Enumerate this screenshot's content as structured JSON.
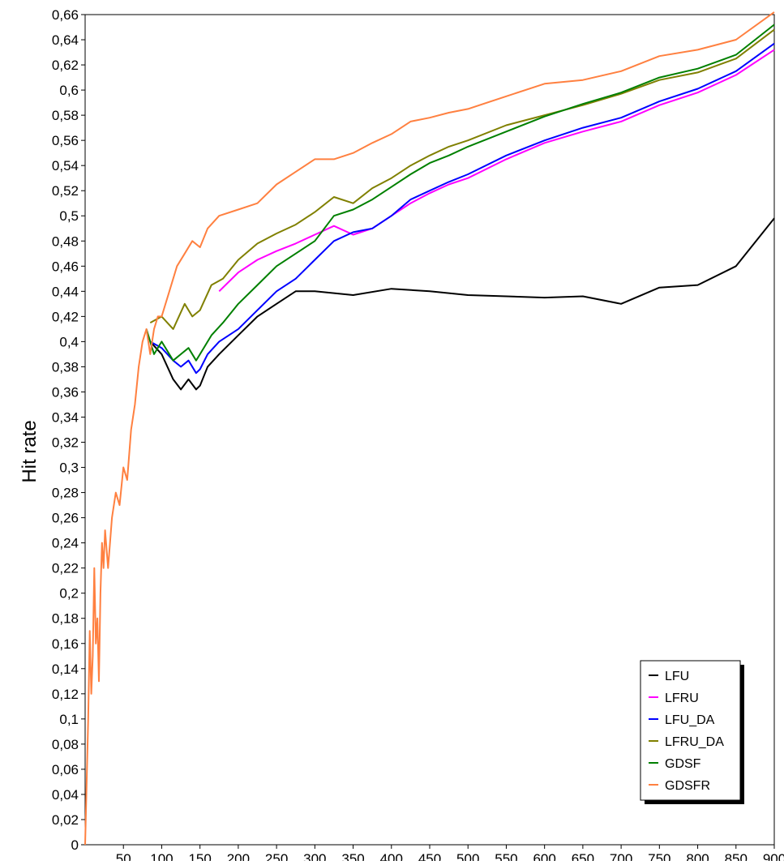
{
  "chart_data": {
    "type": "line",
    "title": "",
    "xlabel": "",
    "ylabel": "Hit rate",
    "xlim": [
      0,
      900
    ],
    "ylim": [
      0,
      0.66
    ],
    "y_ticks": [
      0,
      0.02,
      0.04,
      0.06,
      0.08,
      0.1,
      0.12,
      0.14,
      0.16,
      0.18,
      0.2,
      0.22,
      0.24,
      0.26,
      0.28,
      0.3,
      0.32,
      0.34,
      0.36,
      0.38,
      0.4,
      0.42,
      0.44,
      0.46,
      0.48,
      0.5,
      0.52,
      0.54,
      0.56,
      0.58,
      0.6,
      0.62,
      0.64,
      0.66
    ],
    "y_tick_labels": [
      "0",
      "0,02",
      "0,04",
      "0,06",
      "0,08",
      "0,1",
      "0,12",
      "0,14",
      "0,16",
      "0,18",
      "0,2",
      "0,22",
      "0,24",
      "0,26",
      "0,28",
      "0,3",
      "0,32",
      "0,34",
      "0,36",
      "0,38",
      "0,4",
      "0,42",
      "0,44",
      "0,46",
      "0,48",
      "0,5",
      "0,52",
      "0,54",
      "0,56",
      "0,58",
      "0,6",
      "0,62",
      "0,64",
      "0,66"
    ],
    "x_ticks": [
      50,
      100,
      150,
      200,
      250,
      300,
      350,
      400,
      450,
      500,
      550,
      600,
      650,
      700,
      750,
      800,
      850,
      900
    ],
    "x_tick_labels": [
      "50",
      "100",
      "150",
      "200",
      "250",
      "300",
      "350",
      "400",
      "450",
      "500",
      "550",
      "600",
      "650",
      "700",
      "750",
      "800",
      "850",
      "900"
    ],
    "grid": false,
    "legend_position": "bottom-right",
    "series": [
      {
        "name": "LFU",
        "color": "#000000",
        "x": [
          85,
          100,
          115,
          125,
          135,
          145,
          150,
          160,
          175,
          200,
          225,
          250,
          275,
          300,
          350,
          400,
          450,
          500,
          550,
          600,
          650,
          700,
          750,
          800,
          850,
          900
        ],
        "y": [
          0.4,
          0.39,
          0.37,
          0.362,
          0.37,
          0.362,
          0.365,
          0.38,
          0.39,
          0.405,
          0.42,
          0.43,
          0.44,
          0.44,
          0.437,
          0.442,
          0.44,
          0.437,
          0.436,
          0.435,
          0.436,
          0.43,
          0.443,
          0.445,
          0.46,
          0.498
        ]
      },
      {
        "name": "LFRU",
        "color": "#ff00ff",
        "x": [
          175,
          200,
          225,
          250,
          275,
          300,
          325,
          350,
          375,
          400,
          425,
          450,
          475,
          500,
          550,
          600,
          650,
          700,
          750,
          800,
          850,
          900
        ],
        "y": [
          0.44,
          0.455,
          0.465,
          0.472,
          0.478,
          0.485,
          0.492,
          0.485,
          0.49,
          0.5,
          0.51,
          0.518,
          0.525,
          0.53,
          0.545,
          0.558,
          0.567,
          0.575,
          0.588,
          0.598,
          0.612,
          0.632
        ]
      },
      {
        "name": "LFU_DA",
        "color": "#0000ff",
        "x": [
          85,
          100,
          115,
          125,
          135,
          145,
          150,
          160,
          175,
          200,
          225,
          250,
          275,
          300,
          325,
          350,
          375,
          400,
          425,
          450,
          475,
          500,
          550,
          600,
          650,
          700,
          750,
          800,
          850,
          900
        ],
        "y": [
          0.4,
          0.395,
          0.385,
          0.38,
          0.385,
          0.375,
          0.378,
          0.39,
          0.4,
          0.41,
          0.425,
          0.44,
          0.45,
          0.465,
          0.48,
          0.487,
          0.49,
          0.5,
          0.513,
          0.52,
          0.527,
          0.533,
          0.548,
          0.56,
          0.57,
          0.578,
          0.591,
          0.601,
          0.615,
          0.637
        ]
      },
      {
        "name": "LFRU_DA",
        "color": "#808000",
        "x": [
          85,
          100,
          115,
          130,
          140,
          150,
          165,
          180,
          200,
          225,
          250,
          275,
          300,
          325,
          350,
          375,
          400,
          425,
          450,
          475,
          500,
          550,
          600,
          650,
          700,
          750,
          800,
          850,
          900
        ],
        "y": [
          0.415,
          0.42,
          0.41,
          0.43,
          0.42,
          0.425,
          0.445,
          0.45,
          0.465,
          0.478,
          0.486,
          0.493,
          0.503,
          0.515,
          0.51,
          0.522,
          0.53,
          0.54,
          0.548,
          0.555,
          0.56,
          0.572,
          0.58,
          0.588,
          0.597,
          0.608,
          0.614,
          0.625,
          0.648
        ]
      },
      {
        "name": "GDSF",
        "color": "#008000",
        "x": [
          80,
          90,
          100,
          115,
          125,
          135,
          145,
          150,
          165,
          180,
          200,
          225,
          250,
          275,
          300,
          325,
          350,
          375,
          400,
          425,
          450,
          475,
          500,
          550,
          600,
          650,
          700,
          750,
          800,
          850,
          900
        ],
        "y": [
          0.41,
          0.39,
          0.4,
          0.385,
          0.39,
          0.395,
          0.385,
          0.39,
          0.405,
          0.415,
          0.43,
          0.445,
          0.46,
          0.47,
          0.48,
          0.5,
          0.505,
          0.513,
          0.523,
          0.533,
          0.542,
          0.548,
          0.555,
          0.567,
          0.579,
          0.589,
          0.598,
          0.61,
          0.617,
          0.628,
          0.652
        ]
      },
      {
        "name": "GDSFR",
        "color": "#ff8040",
        "x": [
          0,
          2,
          4,
          6,
          8,
          10,
          12,
          14,
          16,
          18,
          20,
          22,
          24,
          26,
          30,
          35,
          40,
          45,
          50,
          55,
          60,
          65,
          70,
          75,
          80,
          85,
          90,
          95,
          100,
          110,
          120,
          130,
          140,
          150,
          160,
          175,
          200,
          225,
          250,
          275,
          300,
          325,
          350,
          375,
          400,
          425,
          450,
          475,
          500,
          550,
          600,
          650,
          700,
          750,
          800,
          850,
          900
        ],
        "y": [
          0.0,
          0.05,
          0.1,
          0.17,
          0.12,
          0.15,
          0.22,
          0.16,
          0.18,
          0.13,
          0.2,
          0.24,
          0.22,
          0.25,
          0.22,
          0.26,
          0.28,
          0.27,
          0.3,
          0.29,
          0.33,
          0.35,
          0.38,
          0.4,
          0.41,
          0.39,
          0.41,
          0.42,
          0.42,
          0.44,
          0.46,
          0.47,
          0.48,
          0.475,
          0.49,
          0.5,
          0.505,
          0.51,
          0.525,
          0.535,
          0.545,
          0.545,
          0.55,
          0.558,
          0.565,
          0.575,
          0.578,
          0.582,
          0.585,
          0.595,
          0.605,
          0.608,
          0.615,
          0.627,
          0.632,
          0.64,
          0.662
        ]
      }
    ]
  }
}
